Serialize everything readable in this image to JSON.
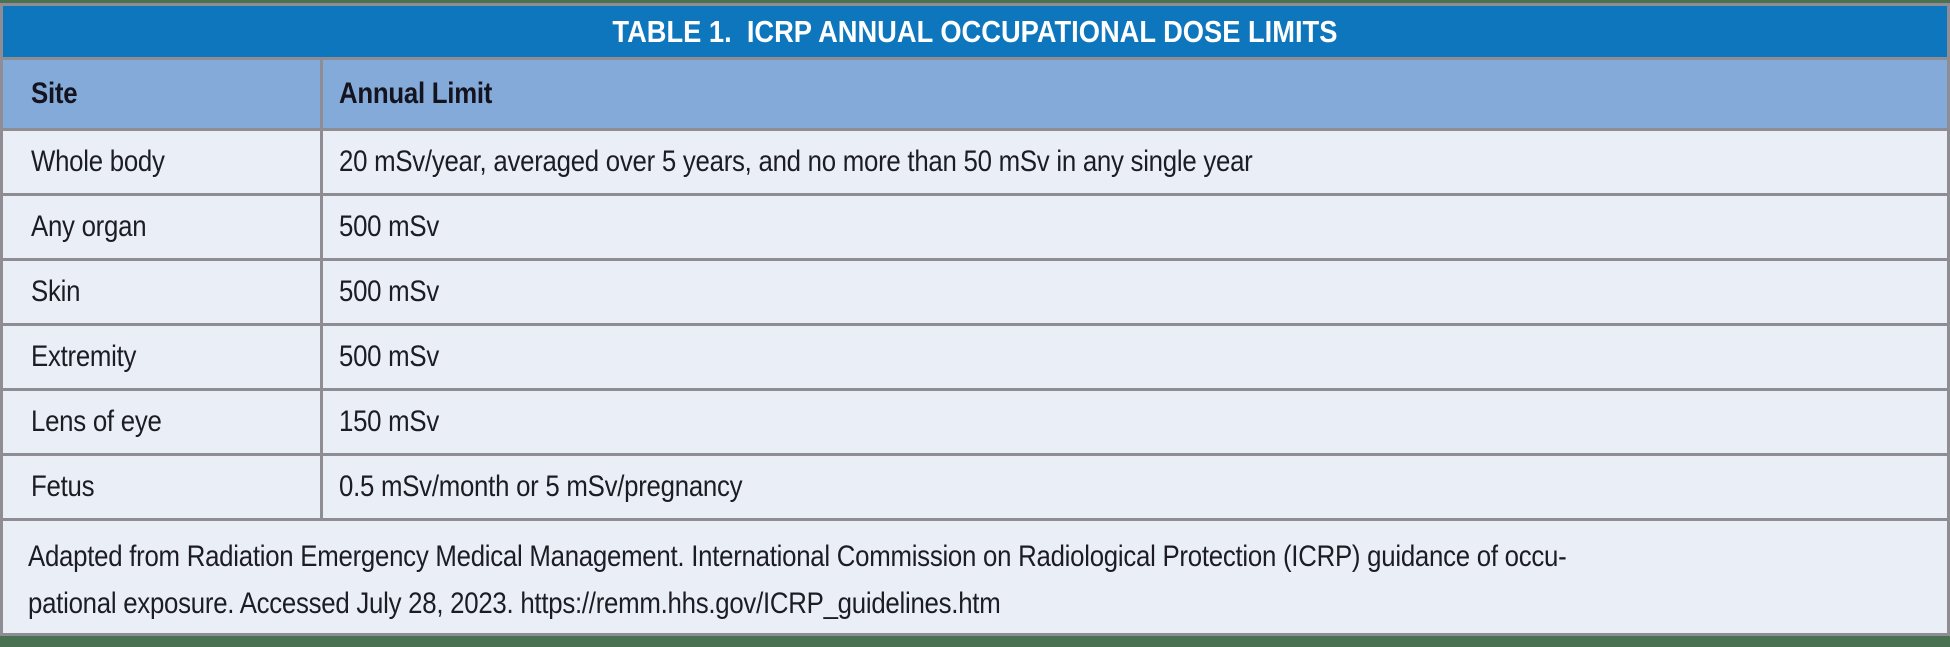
{
  "table": {
    "title": "TABLE 1.  ICRP ANNUAL OCCUPATIONAL DOSE LIMITS",
    "columns": {
      "site": "Site",
      "limit": "Annual Limit"
    },
    "rows": [
      {
        "site": "Whole body",
        "limit": "20 mSv/year, averaged over 5 years, and no more than 50 mSv in any single year"
      },
      {
        "site": "Any organ",
        "limit": "500 mSv"
      },
      {
        "site": "Skin",
        "limit": "500 mSv"
      },
      {
        "site": "Extremity",
        "limit": "500 mSv"
      },
      {
        "site": "Lens of eye",
        "limit": "150 mSv"
      },
      {
        "site": "Fetus",
        "limit": "0.5 mSv/month or 5 mSv/pregnancy"
      }
    ],
    "footer_lines": [
      "Adapted from Radiation Emergency Medical Management. International Commission on Radiological Protection (ICRP) guidance of occu-",
      "pational exposure. Accessed July 28, 2023. https://remm.hhs.gov/ICRP_guidelines.htm"
    ],
    "colors": {
      "title_bar": "#0e76bd",
      "title_text": "#ffffff",
      "header_bg": "#84aad9",
      "row_bg": "#eaeef7",
      "border": "#8d8d93",
      "green_rule": "#4b7153",
      "text": "#1c1c24"
    }
  },
  "chart_data": {
    "type": "table",
    "title": "TABLE 1.  ICRP ANNUAL OCCUPATIONAL DOSE LIMITS",
    "columns": [
      "Site",
      "Annual Limit"
    ],
    "rows": [
      [
        "Whole body",
        "20 mSv/year, averaged over 5 years, and no more than 50 mSv in any single year"
      ],
      [
        "Any organ",
        "500 mSv"
      ],
      [
        "Skin",
        "500 mSv"
      ],
      [
        "Extremity",
        "500 mSv"
      ],
      [
        "Lens of eye",
        "150 mSv"
      ],
      [
        "Fetus",
        "0.5 mSv/month or 5 mSv/pregnancy"
      ],
      [
        "Adapted from Radiation Emergency Medical Management. International Commission on Radiological Protection (ICRP) guidance of occupational exposure. Accessed July 28, 2023. https://remm.hhs.gov/ICRP_guidelines.htm",
        ""
      ]
    ]
  }
}
